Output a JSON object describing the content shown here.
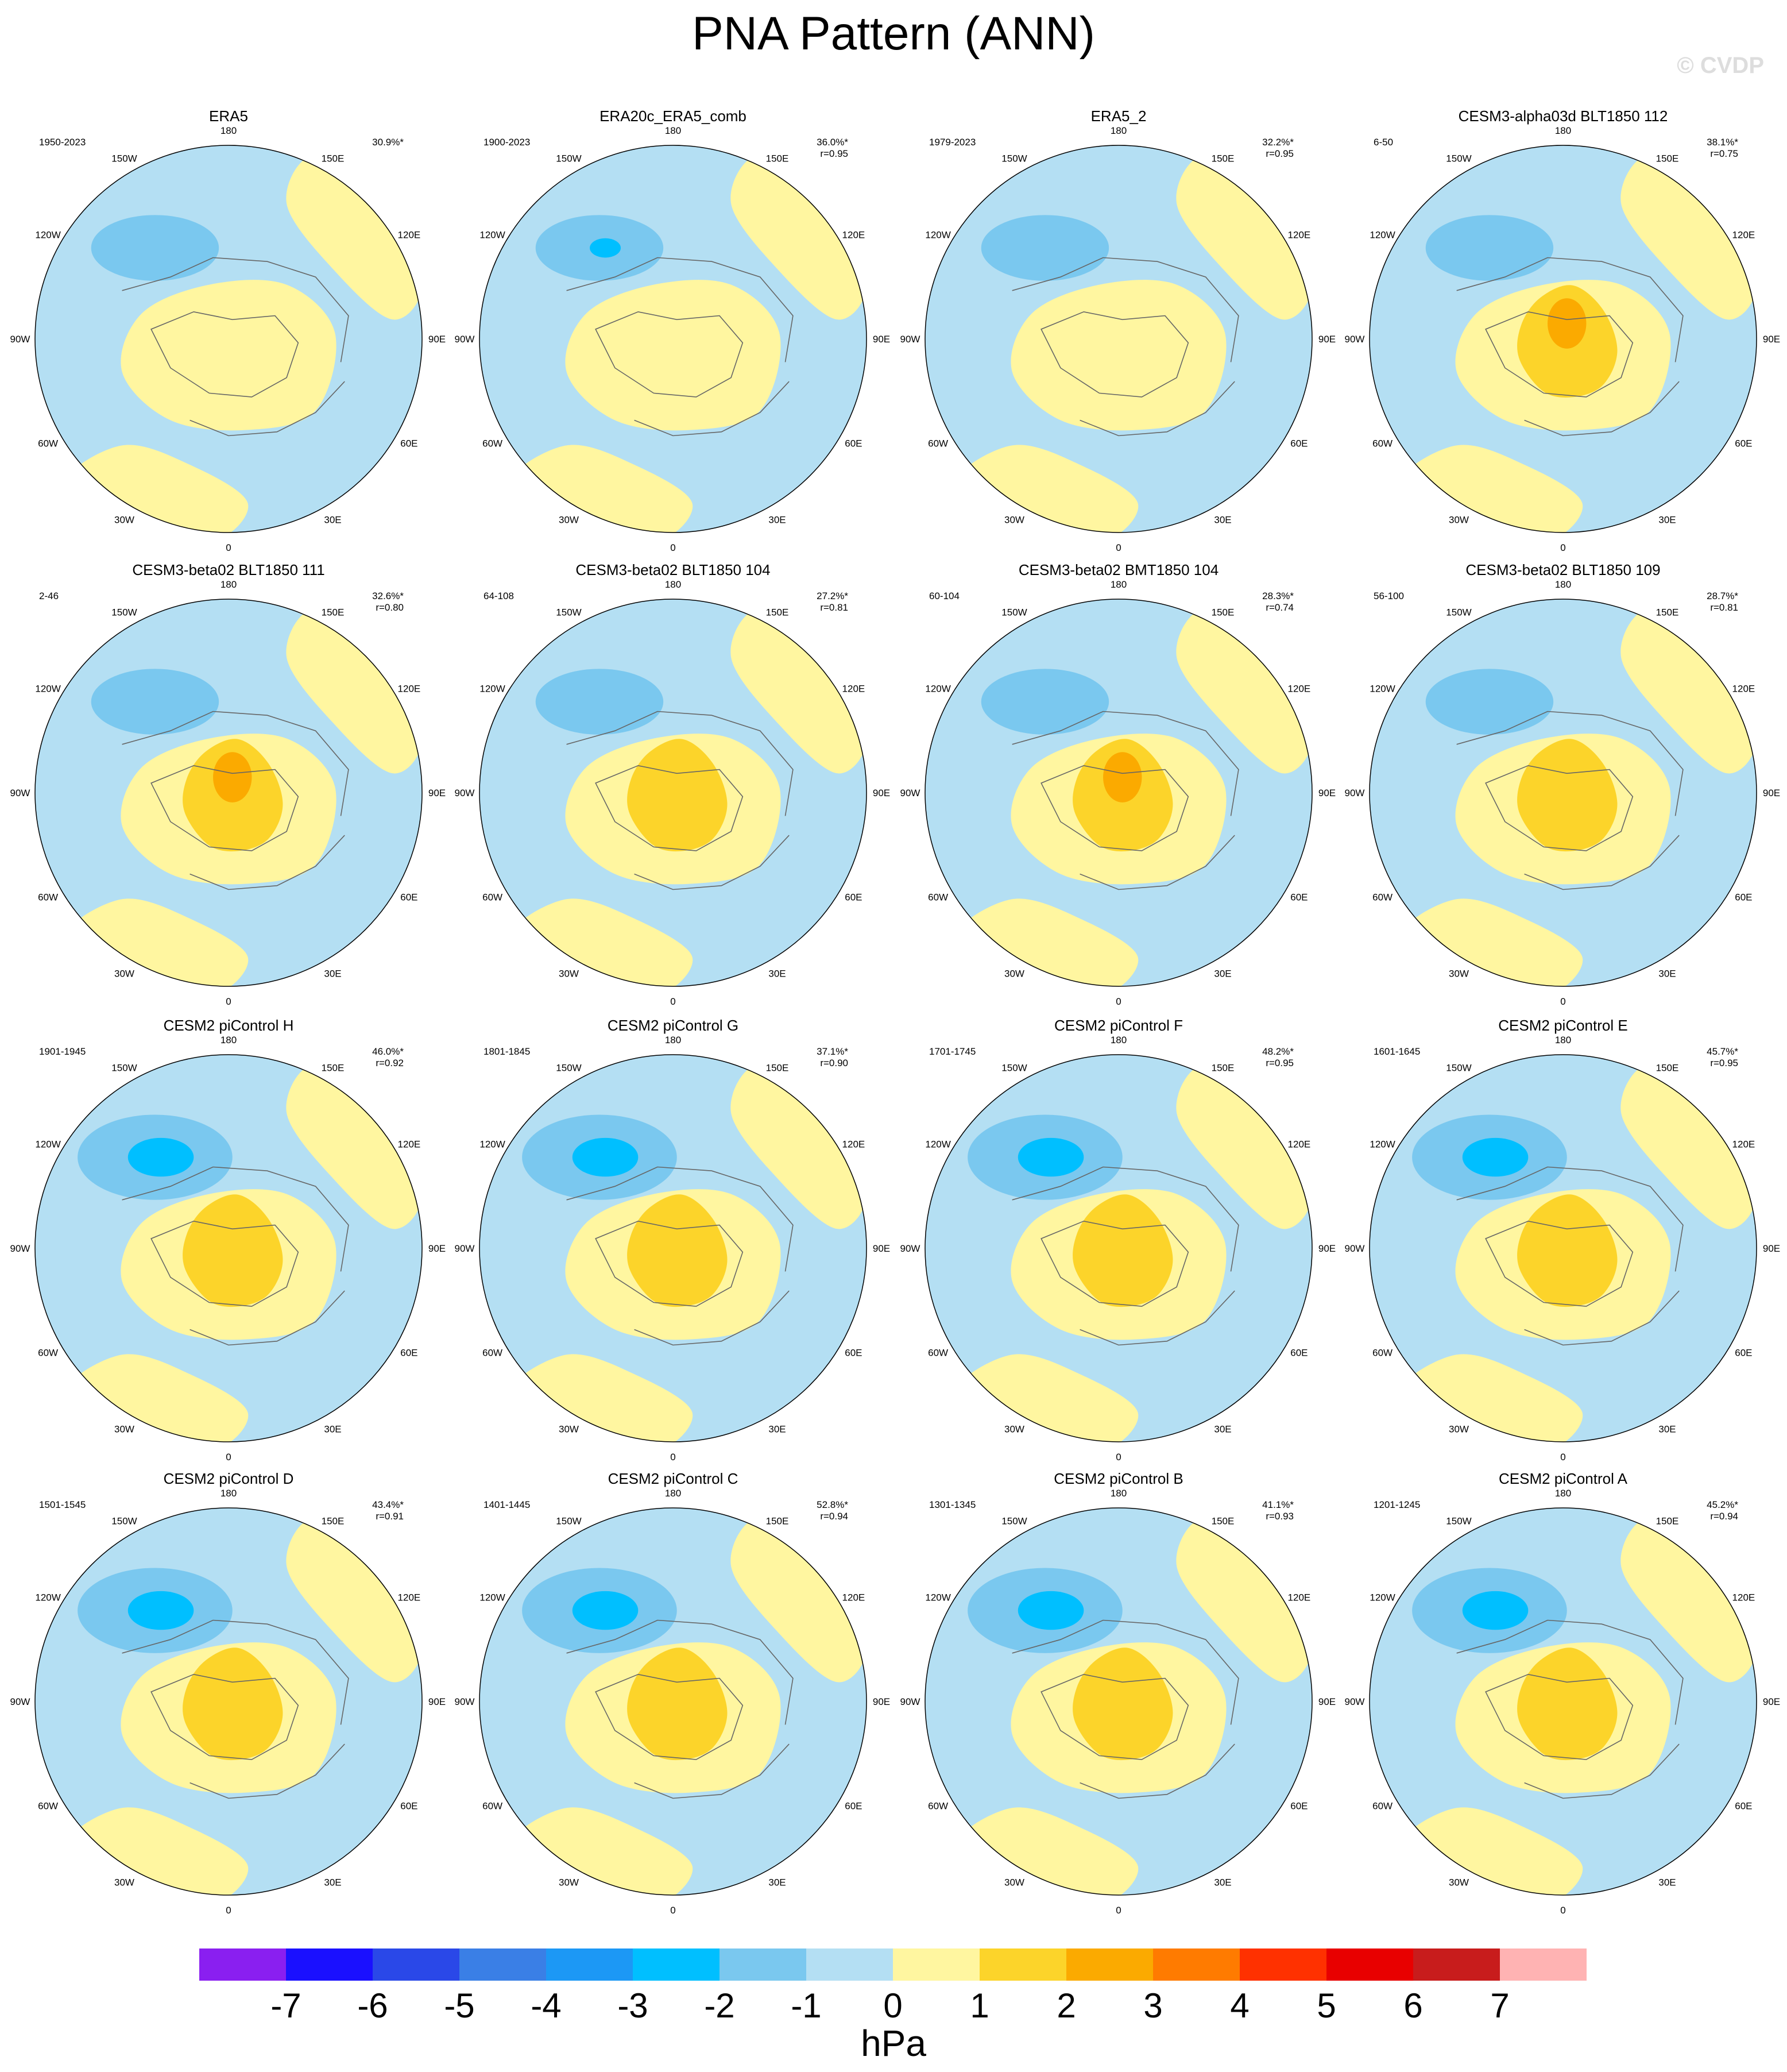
{
  "title": "PNA Pattern (ANN)",
  "watermark": "© CVDP",
  "lon_labels": [
    "180",
    "150E",
    "120E",
    "90E",
    "60E",
    "30E",
    "0",
    "30W",
    "60W",
    "90W",
    "120W",
    "150W"
  ],
  "colors": {
    "neg_light": "#b4dff3",
    "neg_1": "#7ac8ef",
    "neg_2": "#00bfff",
    "pos_light": "#fff6a0",
    "pos_1": "#fcd42a",
    "pos_2": "#fbaa00",
    "coast": "#666666",
    "border": "#000000"
  },
  "panels": [
    {
      "title": "ERA5",
      "period": "1950-2023",
      "pct": "30.9%*",
      "r": ""
    },
    {
      "title": "ERA20c_ERA5_comb",
      "period": "1900-2023",
      "pct": "36.0%*",
      "r": "r=0.95"
    },
    {
      "title": "ERA5_2",
      "period": "1979-2023",
      "pct": "32.2%*",
      "r": "r=0.95"
    },
    {
      "title": "CESM3-alpha03d BLT1850 112",
      "period": "6-50",
      "pct": "38.1%*",
      "r": "r=0.75"
    },
    {
      "title": "CESM3-beta02 BLT1850 111",
      "period": "2-46",
      "pct": "32.6%*",
      "r": "r=0.80"
    },
    {
      "title": "CESM3-beta02 BLT1850 104",
      "period": "64-108",
      "pct": "27.2%*",
      "r": "r=0.81"
    },
    {
      "title": "CESM3-beta02 BMT1850 104",
      "period": "60-104",
      "pct": "28.3%*",
      "r": "r=0.74"
    },
    {
      "title": "CESM3-beta02 BLT1850 109",
      "period": "56-100",
      "pct": "28.7%*",
      "r": "r=0.81"
    },
    {
      "title": "CESM2 piControl H",
      "period": "1901-1945",
      "pct": "46.0%*",
      "r": "r=0.92"
    },
    {
      "title": "CESM2 piControl G",
      "period": "1801-1845",
      "pct": "37.1%*",
      "r": "r=0.90"
    },
    {
      "title": "CESM2 piControl F",
      "period": "1701-1745",
      "pct": "48.2%*",
      "r": "r=0.95"
    },
    {
      "title": "CESM2 piControl E",
      "period": "1601-1645",
      "pct": "45.7%*",
      "r": "r=0.95"
    },
    {
      "title": "CESM2 piControl D",
      "period": "1501-1545",
      "pct": "43.4%*",
      "r": "r=0.91"
    },
    {
      "title": "CESM2 piControl C",
      "period": "1401-1445",
      "pct": "52.8%*",
      "r": "r=0.94"
    },
    {
      "title": "CESM2 piControl B",
      "period": "1301-1345",
      "pct": "41.1%*",
      "r": "r=0.93"
    },
    {
      "title": "CESM2 piControl A",
      "period": "1201-1245",
      "pct": "45.2%*",
      "r": "r=0.94"
    }
  ],
  "colorbar": {
    "labels": [
      "-7",
      "-6",
      "-5",
      "-4",
      "-3",
      "-2",
      "-1",
      "0",
      "1",
      "2",
      "3",
      "4",
      "5",
      "6",
      "7"
    ],
    "colors": [
      "#8a1ff0",
      "#1a10ff",
      "#2a48e8",
      "#3a7fe6",
      "#1c98f5",
      "#00bfff",
      "#7ac8ef",
      "#b4dff3",
      "#fff6a0",
      "#fcd42a",
      "#fbaa00",
      "#ff7b00",
      "#ff3100",
      "#e80000",
      "#c81c1c",
      "#ffb3b3"
    ],
    "unit": "hPa"
  }
}
